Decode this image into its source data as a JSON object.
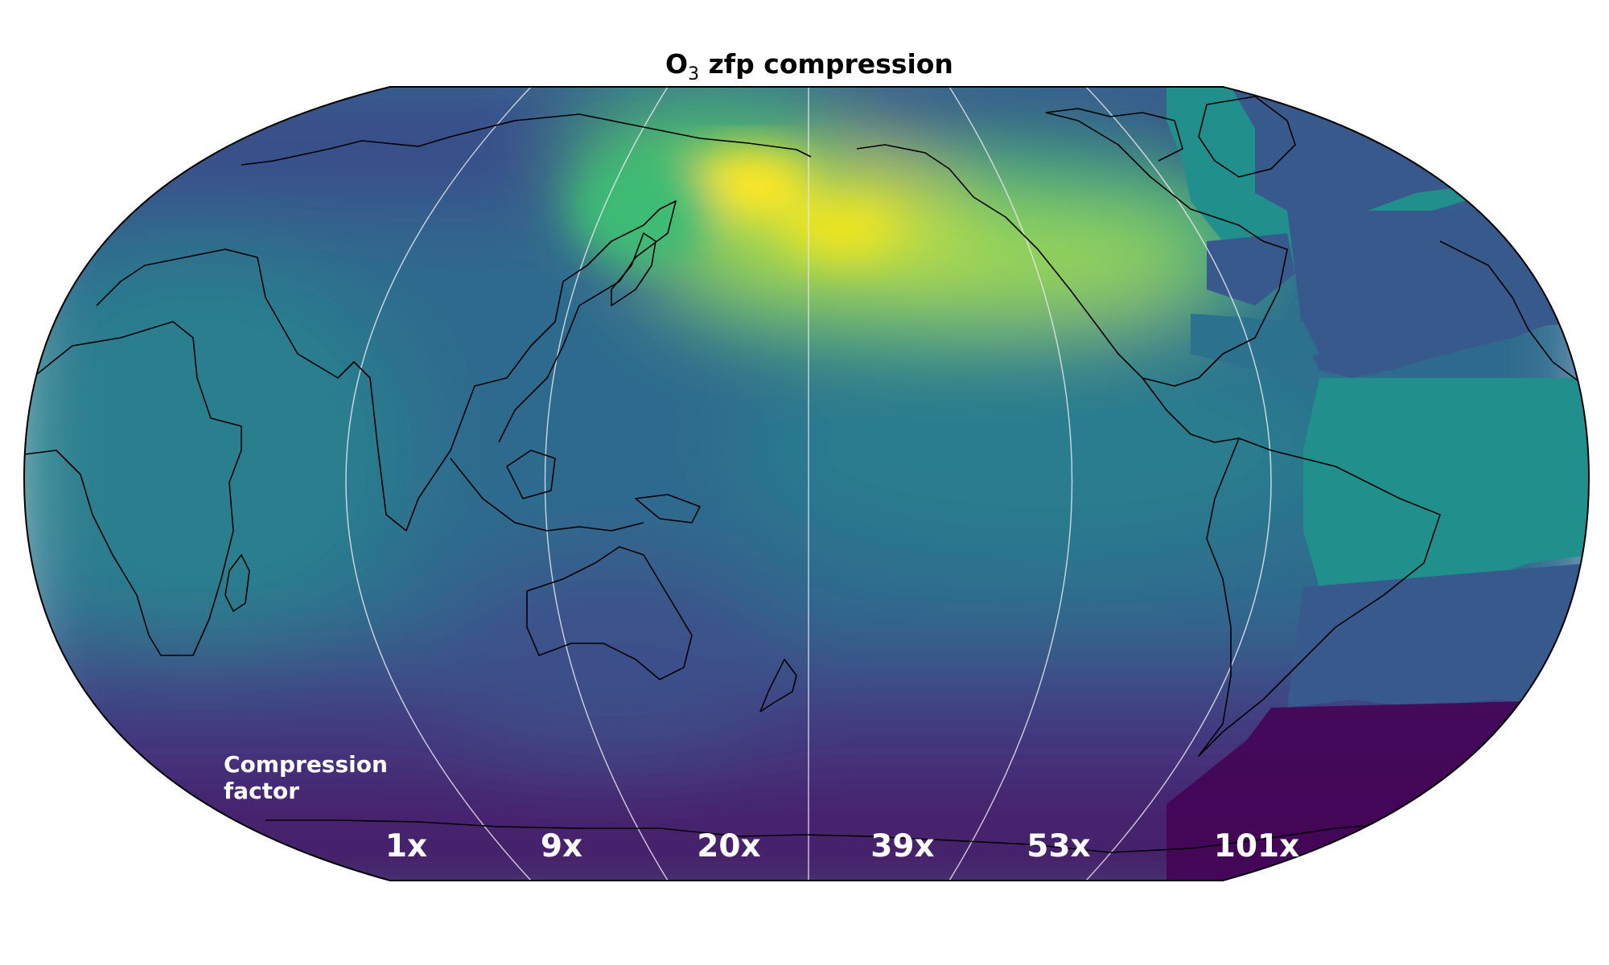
{
  "title": {
    "prefix": "O",
    "subscript": "3",
    "suffix": " zfp compression"
  },
  "legend": {
    "line1": "Compression",
    "line2": "factor"
  },
  "compression_factors": [
    "1x",
    "9x",
    "20x",
    "39x",
    "53x",
    "101x"
  ],
  "colormap": "viridis",
  "colors": {
    "viridis_dark": "#440154",
    "viridis_mid": "#21908d",
    "viridis_bright": "#fde725",
    "label_text": "#ffffff",
    "coastline": "#000000"
  }
}
